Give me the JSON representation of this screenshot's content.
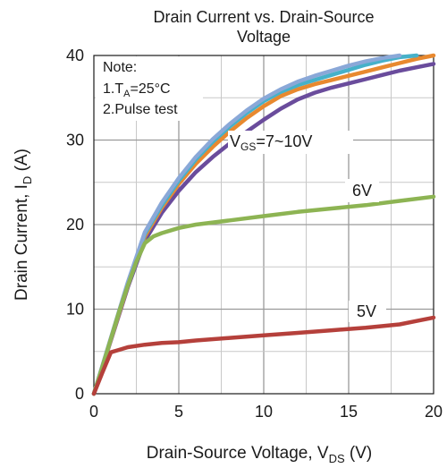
{
  "chart_data": {
    "type": "line",
    "title_line1": "Drain Current vs. Drain-Source",
    "title_line2": "Voltage",
    "xlabel_main": "Drain-Source Voltage, V",
    "xlabel_sub": "DS",
    "xlabel_unit": " (V)",
    "ylabel_main": "Drain Current, I",
    "ylabel_sub": "D",
    "ylabel_unit": " (A)",
    "xlim": [
      0,
      20
    ],
    "ylim": [
      0,
      40
    ],
    "xticks": [
      "0",
      "5",
      "10",
      "15",
      "20"
    ],
    "yticks": [
      "0",
      "10",
      "20",
      "30",
      "40"
    ],
    "grid": true,
    "note": {
      "line1": "Note:",
      "line2_prefix": "1.T",
      "line2_sub": "A",
      "line2_suffix": "=25°C",
      "line3": "2.Pulse test"
    },
    "annotations": {
      "vgs_prefix": "V",
      "vgs_sub": "GS",
      "vgs_suffix": "=7~10V",
      "v6": "6V",
      "v5": "5V"
    },
    "series": [
      {
        "color": "#6a4c9c",
        "x": [
          0,
          1,
          2,
          3,
          4,
          5,
          6,
          7,
          8,
          9,
          10,
          11,
          12,
          13,
          14,
          15,
          16,
          17,
          18,
          19,
          20
        ],
        "y": [
          0,
          6.3,
          12.6,
          18.1,
          21.4,
          24.0,
          26.2,
          28.0,
          29.6,
          31.0,
          32.4,
          33.7,
          34.8,
          35.6,
          36.2,
          36.7,
          37.2,
          37.7,
          38.2,
          38.6,
          39.0
        ]
      },
      {
        "color": "#e8892f",
        "x": [
          0,
          1,
          2,
          3,
          4,
          5,
          6,
          7,
          8,
          9,
          10,
          11,
          12,
          13,
          14,
          15,
          16,
          17,
          18,
          19,
          20
        ],
        "y": [
          0,
          6.4,
          12.8,
          18.6,
          22.0,
          24.8,
          27.2,
          29.2,
          31.0,
          32.6,
          34.0,
          35.2,
          36.0,
          36.6,
          37.1,
          37.6,
          38.1,
          38.6,
          39.1,
          39.6,
          40.0
        ]
      },
      {
        "color": "#46b1c9",
        "x": [
          0,
          1,
          2,
          3,
          4,
          5,
          6,
          7,
          8,
          9,
          10,
          11,
          12,
          13,
          14,
          15,
          16,
          17,
          18,
          19
        ],
        "y": [
          0,
          6.5,
          13.0,
          18.9,
          22.3,
          25.2,
          27.7,
          29.8,
          31.6,
          33.2,
          34.6,
          35.7,
          36.5,
          37.1,
          37.7,
          38.3,
          38.9,
          39.4,
          39.8,
          40.0
        ]
      },
      {
        "color": "#8aa8d8",
        "x": [
          0,
          1,
          2,
          3,
          4,
          5,
          6,
          7,
          8,
          9,
          10,
          11,
          12,
          13,
          14,
          15,
          16,
          17,
          18
        ],
        "y": [
          0,
          6.6,
          13.2,
          19.1,
          22.6,
          25.5,
          28.0,
          30.1,
          31.9,
          33.5,
          34.9,
          36.0,
          36.9,
          37.6,
          38.2,
          38.8,
          39.3,
          39.7,
          40.0
        ]
      },
      {
        "color": "#8db453",
        "x": [
          0,
          0.5,
          1,
          1.5,
          2,
          2.5,
          3,
          3.5,
          4,
          5,
          6,
          8,
          10,
          12,
          14,
          16,
          18,
          20
        ],
        "y": [
          0,
          3.2,
          6.5,
          9.8,
          12.8,
          15.6,
          17.8,
          18.6,
          19.0,
          19.6,
          20.0,
          20.5,
          21.0,
          21.5,
          21.9,
          22.3,
          22.8,
          23.3
        ]
      },
      {
        "color": "#b5403b",
        "x": [
          0,
          0.5,
          1,
          1.5,
          2,
          3,
          4,
          5,
          6,
          8,
          10,
          12,
          14,
          16,
          17,
          18,
          19,
          20
        ],
        "y": [
          0,
          2.5,
          4.9,
          5.2,
          5.5,
          5.8,
          6.0,
          6.1,
          6.3,
          6.6,
          6.9,
          7.2,
          7.5,
          7.8,
          8.0,
          8.2,
          8.6,
          9.0
        ]
      }
    ]
  }
}
